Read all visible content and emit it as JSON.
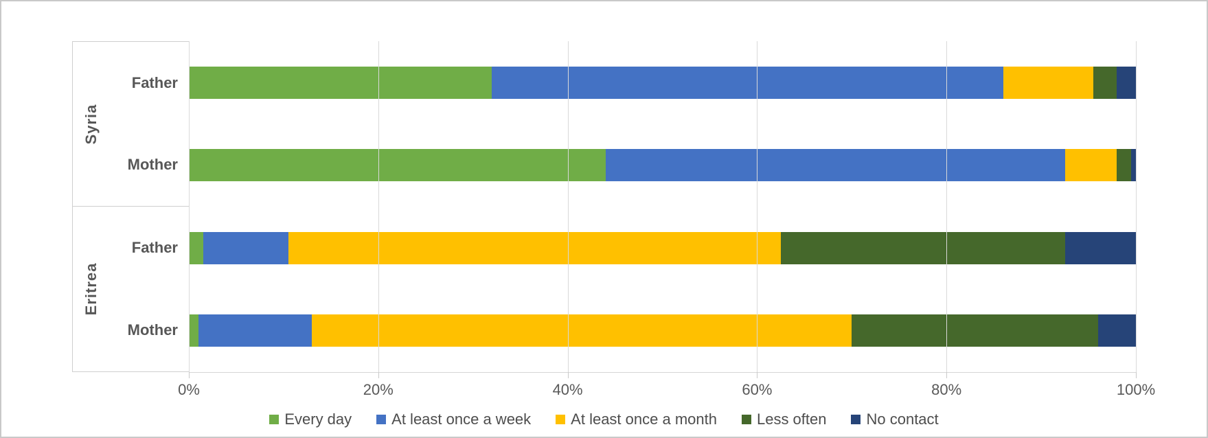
{
  "chart_data": {
    "type": "bar",
    "orientation": "horizontal",
    "stacked": true,
    "title": "",
    "grid": true,
    "legend_position": "bottom",
    "x_axis": {
      "min": 0,
      "max": 100,
      "unit": "%",
      "ticks": [
        "0%",
        "20%",
        "40%",
        "60%",
        "80%",
        "100%"
      ]
    },
    "groups": [
      {
        "label": "Syria",
        "categories": [
          "Father",
          "Mother"
        ]
      },
      {
        "label": "Eritrea",
        "categories": [
          "Father",
          "Mother"
        ]
      }
    ],
    "row_labels": [
      "Syria Father",
      "Syria Mother",
      "Eritrea Father",
      "Eritrea Mother"
    ],
    "series": [
      {
        "name": "Every day",
        "color": "#70AD47",
        "values": [
          32,
          44,
          1.5,
          1.0
        ]
      },
      {
        "name": "At least once a week",
        "color": "#4472C4",
        "values": [
          54,
          48.5,
          9,
          12
        ]
      },
      {
        "name": "At least once a month",
        "color": "#FFC000",
        "values": [
          9.5,
          5.5,
          52,
          57
        ]
      },
      {
        "name": "Less often",
        "color": "#45682B",
        "values": [
          2.5,
          1.5,
          30,
          26
        ]
      },
      {
        "name": "No contact",
        "color": "#264478",
        "values": [
          2,
          0.5,
          7.5,
          4
        ]
      }
    ]
  },
  "ui_colors": {
    "background": "#FFFFFF",
    "frame_border": "#C9C9C9",
    "gridline": "#D9D9D9",
    "axis_line": "#C9C9C9",
    "tick_text": "#595959",
    "category_text": "#575757",
    "legend_text": "#4D4D4D"
  }
}
